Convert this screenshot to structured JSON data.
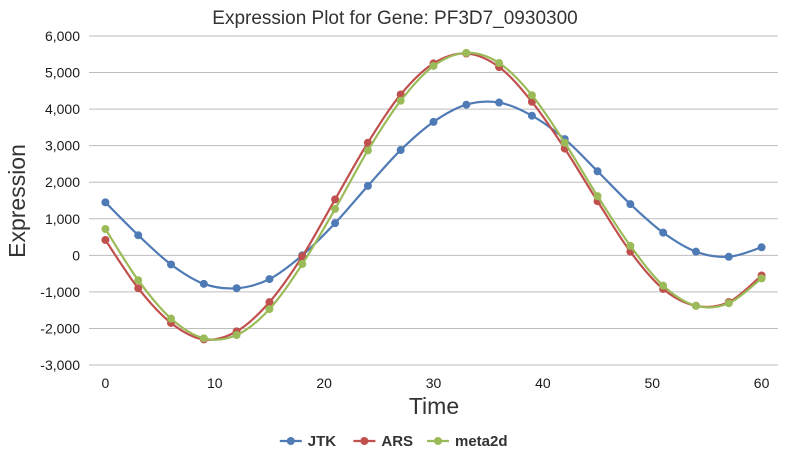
{
  "chart_data": {
    "type": "line",
    "title": "Expression Plot for Gene: PF3D7_0930300",
    "xlabel": "Time",
    "ylabel": "Expression",
    "xlim": [
      -1.5,
      61.5
    ],
    "ylim": [
      -3000,
      6000
    ],
    "xticks": [
      0,
      10,
      20,
      30,
      40,
      50,
      60
    ],
    "xtick_labels": [
      "0",
      "10",
      "20",
      "30",
      "40",
      "50",
      "60"
    ],
    "yticks": [
      -3000,
      -2000,
      -1000,
      0,
      1000,
      2000,
      3000,
      4000,
      5000,
      6000
    ],
    "ytick_labels": [
      "-3,000",
      "-2,000",
      "-1,000",
      "0",
      "1,000",
      "2,000",
      "3,000",
      "4,000",
      "5,000",
      "6,000"
    ],
    "grid": true,
    "legend_position": "bottom-center",
    "x": [
      0,
      3,
      6,
      9,
      12,
      15,
      18,
      21,
      24,
      27,
      30,
      33,
      36,
      39,
      42,
      45,
      48,
      51,
      54,
      57,
      60
    ],
    "series": [
      {
        "name": "JTK",
        "color": "#4e7ab5",
        "values": [
          1450,
          550,
          -250,
          -780,
          -900,
          -650,
          0,
          880,
          1900,
          2880,
          3650,
          4120,
          4180,
          3820,
          3180,
          2300,
          1400,
          620,
          100,
          -40,
          220
        ]
      },
      {
        "name": "ARS",
        "color": "#c0504d",
        "values": [
          420,
          -900,
          -1850,
          -2300,
          -2080,
          -1280,
          -30,
          1530,
          3080,
          4400,
          5250,
          5520,
          5150,
          4200,
          2920,
          1480,
          100,
          -920,
          -1380,
          -1280,
          -550
        ]
      },
      {
        "name": "meta2d",
        "color": "#9bbb59",
        "values": [
          720,
          -680,
          -1730,
          -2270,
          -2180,
          -1470,
          -240,
          1270,
          2870,
          4230,
          5180,
          5540,
          5260,
          4380,
          3080,
          1620,
          260,
          -830,
          -1380,
          -1310,
          -630
        ]
      }
    ]
  }
}
